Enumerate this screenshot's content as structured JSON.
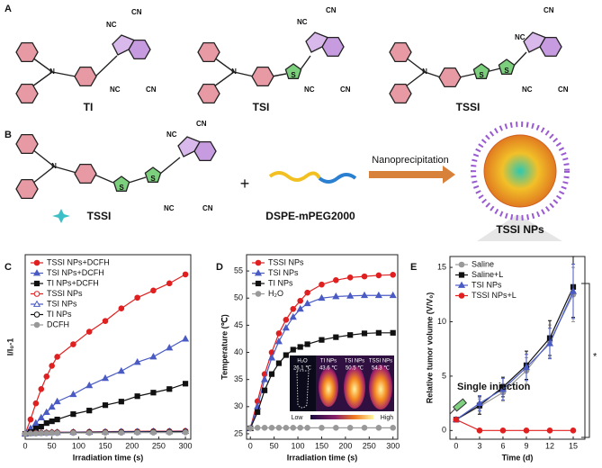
{
  "panel_labels": [
    "A",
    "B",
    "C",
    "D",
    "E"
  ],
  "panel_a": {
    "molecules": [
      "TI",
      "TSI",
      "TSSI"
    ],
    "cyano": [
      "NC",
      "CN"
    ],
    "amine": "N",
    "sulfur": "S"
  },
  "panel_b": {
    "plus": "+",
    "arrow_label": "Nanoprecipitation",
    "labels": [
      "TSSI",
      "DSPE-mPEG2000",
      "TSSI NPs"
    ]
  },
  "chart_data": [
    {
      "type": "line",
      "xlabel": "Irradiation time (s)",
      "ylabel": "I/I₀-1",
      "x": [
        0,
        10,
        20,
        30,
        40,
        50,
        60,
        90,
        120,
        150,
        180,
        210,
        240,
        270,
        300
      ],
      "xlim": [
        0,
        310
      ],
      "xticks": [
        0,
        50,
        100,
        150,
        200,
        250,
        300
      ],
      "ylim": [
        -3,
        100
      ],
      "legend": "upper left",
      "series": [
        {
          "name": "TSSI NPs+DCFH",
          "color": "#e02020",
          "marker": "circle",
          "filled": true,
          "values": [
            0,
            8,
            17,
            25,
            32,
            38,
            43,
            50,
            57,
            63,
            70,
            76,
            80,
            84,
            89
          ]
        },
        {
          "name": "TSI NPs+DCFH",
          "color": "#4a5bc4",
          "marker": "triangle",
          "filled": true,
          "values": [
            0,
            3,
            6,
            9,
            12,
            15,
            18,
            22,
            27,
            31,
            35,
            40,
            43,
            48,
            53
          ]
        },
        {
          "name": "TI NPs+DCFH",
          "color": "#111111",
          "marker": "square",
          "filled": true,
          "values": [
            0,
            1,
            3,
            4,
            6,
            7,
            8,
            11,
            13,
            16,
            18,
            21,
            23,
            25,
            28
          ]
        },
        {
          "name": "TSSI NPs",
          "color": "#e02020",
          "marker": "circle",
          "filled": false,
          "values": [
            0,
            0.3,
            0.5,
            0.6,
            0.7,
            0.8,
            0.9,
            1,
            1.1,
            1.2,
            1.3,
            1.4,
            1.5,
            1.5,
            1.6
          ]
        },
        {
          "name": "TSI NPs",
          "color": "#4a5bc4",
          "marker": "triangle",
          "filled": false,
          "values": [
            0,
            0.3,
            0.4,
            0.5,
            0.6,
            0.7,
            0.8,
            0.9,
            1,
            1.1,
            1.2,
            1.2,
            1.3,
            1.3,
            1.4
          ]
        },
        {
          "name": "TI NPs",
          "color": "#111111",
          "marker": "circle",
          "filled": false,
          "values": [
            0,
            0.2,
            0.3,
            0.4,
            0.5,
            0.6,
            0.6,
            0.7,
            0.8,
            0.9,
            1,
            1,
            1.1,
            1.1,
            1.2
          ]
        },
        {
          "name": "DCFH",
          "color": "#999999",
          "marker": "circle",
          "filled": true,
          "values": [
            0,
            0.1,
            0.2,
            0.3,
            0.3,
            0.4,
            0.4,
            0.5,
            0.5,
            0.6,
            0.6,
            0.7,
            0.7,
            0.7,
            0.8
          ]
        }
      ]
    },
    {
      "type": "line",
      "xlabel": "Irradiation time (s)",
      "ylabel": "Temperature (℃)",
      "x": [
        0,
        15,
        30,
        45,
        60,
        75,
        90,
        105,
        120,
        150,
        180,
        210,
        240,
        270,
        300
      ],
      "xlim": [
        -8,
        310
      ],
      "xticks": [
        0,
        50,
        100,
        150,
        200,
        250,
        300
      ],
      "ylim": [
        24,
        58
      ],
      "yticks": [
        25,
        30,
        35,
        40,
        45,
        50,
        55
      ],
      "legend": "upper left",
      "series": [
        {
          "name": "TSSI NPs",
          "color": "#e02020",
          "marker": "circle",
          "filled": true,
          "values": [
            26,
            31,
            36,
            40,
            43.5,
            46,
            48,
            49.5,
            51,
            52.5,
            53.3,
            53.8,
            54,
            54.2,
            54.3
          ]
        },
        {
          "name": "TSI NPs",
          "color": "#4a5bc4",
          "marker": "triangle",
          "filled": true,
          "values": [
            26,
            30,
            35,
            39,
            42,
            44.5,
            46.5,
            48,
            49,
            50,
            50.3,
            50.4,
            50.5,
            50.5,
            50.5
          ]
        },
        {
          "name": "TI NPs",
          "color": "#111111",
          "marker": "square",
          "filled": true,
          "values": [
            26,
            29,
            33,
            36,
            38,
            39.5,
            40.5,
            41,
            41.5,
            42.3,
            42.8,
            43.2,
            43.5,
            43.6,
            43.6
          ]
        },
        {
          "name": "H₂O",
          "color": "#999999",
          "marker": "circle",
          "filled": true,
          "values": [
            26,
            26.1,
            26.1,
            26.1,
            26.1,
            26.1,
            26.1,
            26.1,
            26.1,
            26.1,
            26.1,
            26.1,
            26.1,
            26.1,
            26.1
          ]
        }
      ],
      "inset": {
        "labels": [
          [
            "H₂O",
            "26.1 ℃"
          ],
          [
            "TI NPs",
            "43.6 ℃"
          ],
          [
            "TSI NPs",
            "50.5 ℃"
          ],
          [
            "TSSI NPs",
            "54.3 ℃"
          ]
        ],
        "low": "Low",
        "high": "High"
      }
    },
    {
      "type": "line",
      "xlabel": "Time (d)",
      "ylabel": "Relative tumor volume (V/V₀)",
      "x": [
        0,
        3,
        6,
        9,
        12,
        15
      ],
      "xlim": [
        -0.8,
        16.5
      ],
      "xticks": [
        0,
        3,
        6,
        9,
        12,
        15
      ],
      "ylim": [
        -0.8,
        16
      ],
      "yticks": [
        0,
        5,
        10,
        15
      ],
      "legend": "upper left",
      "annotations": [
        "Single injection",
        "*"
      ],
      "series": [
        {
          "name": "Saline",
          "color": "#999999",
          "marker": "circle",
          "filled": true,
          "values": [
            1,
            2.2,
            3.5,
            5.5,
            8.2,
            12.5
          ],
          "errors": [
            0.2,
            0.7,
            0.8,
            1.2,
            1.5,
            2.5
          ]
        },
        {
          "name": "Saline+L",
          "color": "#111111",
          "marker": "square",
          "filled": true,
          "values": [
            1,
            2.3,
            4,
            6,
            8.5,
            13.2
          ],
          "errors": [
            0.2,
            0.8,
            0.9,
            1.3,
            1.6,
            2.8
          ]
        },
        {
          "name": "TSI NPs",
          "color": "#4a5bc4",
          "marker": "triangle",
          "filled": true,
          "values": [
            1,
            2.5,
            3.8,
            5.8,
            8,
            12.8
          ],
          "errors": [
            0.2,
            0.7,
            1,
            1.2,
            1.4,
            2.5
          ]
        },
        {
          "name": "TSSI NPs+L",
          "color": "#e02020",
          "marker": "circle",
          "filled": true,
          "values": [
            1,
            0,
            0,
            0,
            0,
            0
          ],
          "errors": [
            0.1,
            0.1,
            0.1,
            0.1,
            0.1,
            0.1
          ]
        }
      ]
    }
  ]
}
